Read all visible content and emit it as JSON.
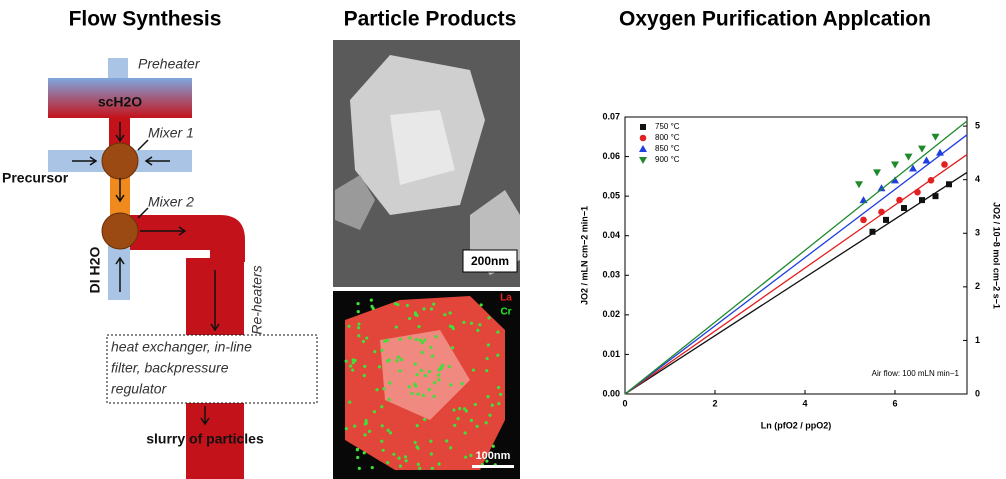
{
  "panels": {
    "flow": {
      "title": "Flow Synthesis",
      "preheater": "Preheater",
      "water": "scH2O",
      "mixer1": "Mixer 1",
      "precursor": "Precursor",
      "mixer2": "Mixer 2",
      "di_water": "DI H2O",
      "reheaters": "Re-heaters",
      "box": [
        "heat exchanger, in-line",
        "filter, backpressure",
        "regulator"
      ],
      "output": "slurry of particles"
    },
    "particles": {
      "title": "Particle Products",
      "scale1": "200nm",
      "scale2": "100nm",
      "element1": "La",
      "element2": "Cr"
    }
  },
  "chart_data": {
    "type": "scatter",
    "title": "Oxygen Purification Applcation",
    "x_label": "Ln (pfO2 / ppO2)",
    "y_label": "JO2 / mLN cm−2 min−1",
    "y2_label": "JO2 / 10−8 mol cm−2 s−1",
    "annotation": "Air flow: 100 mLN min−1",
    "xlim": [
      0,
      7.6
    ],
    "xticks": [
      0,
      2,
      4,
      6
    ],
    "ylim": [
      0,
      0.07
    ],
    "yticks": [
      {
        "value": 0,
        "label": "0.00"
      },
      0.01,
      0.02,
      0.03,
      0.04,
      0.05,
      0.06,
      0.07
    ],
    "y2lim": [
      0,
      5.17
    ],
    "y2ticks": [
      0,
      1,
      2,
      3,
      4,
      5
    ],
    "legend": "upper left",
    "series": [
      {
        "name": "750 °C",
        "color": "#111111",
        "marker": "square",
        "x": [
          5.5,
          5.8,
          6.2,
          6.6,
          6.9,
          7.2
        ],
        "values": [
          0.041,
          0.044,
          0.047,
          0.049,
          0.05,
          0.053
        ],
        "fit_end": 0.056
      },
      {
        "name": "800 °C",
        "color": "#e32020",
        "marker": "circle",
        "x": [
          5.3,
          5.7,
          6.1,
          6.5,
          6.8,
          7.1
        ],
        "values": [
          0.044,
          0.046,
          0.049,
          0.051,
          0.054,
          0.058
        ],
        "fit_end": 0.0605
      },
      {
        "name": "850 °C",
        "color": "#1f3fe0",
        "marker": "triangle-up",
        "x": [
          5.3,
          5.7,
          6.0,
          6.4,
          6.7,
          7.0
        ],
        "values": [
          0.049,
          0.052,
          0.054,
          0.057,
          0.059,
          0.061
        ],
        "fit_end": 0.0655
      },
      {
        "name": "900 °C",
        "color": "#1e8a2a",
        "marker": "triangle-down",
        "x": [
          5.2,
          5.6,
          6.0,
          6.3,
          6.6,
          6.9
        ],
        "values": [
          0.053,
          0.056,
          0.058,
          0.06,
          0.062,
          0.065
        ],
        "fit_end": 0.069
      }
    ]
  }
}
